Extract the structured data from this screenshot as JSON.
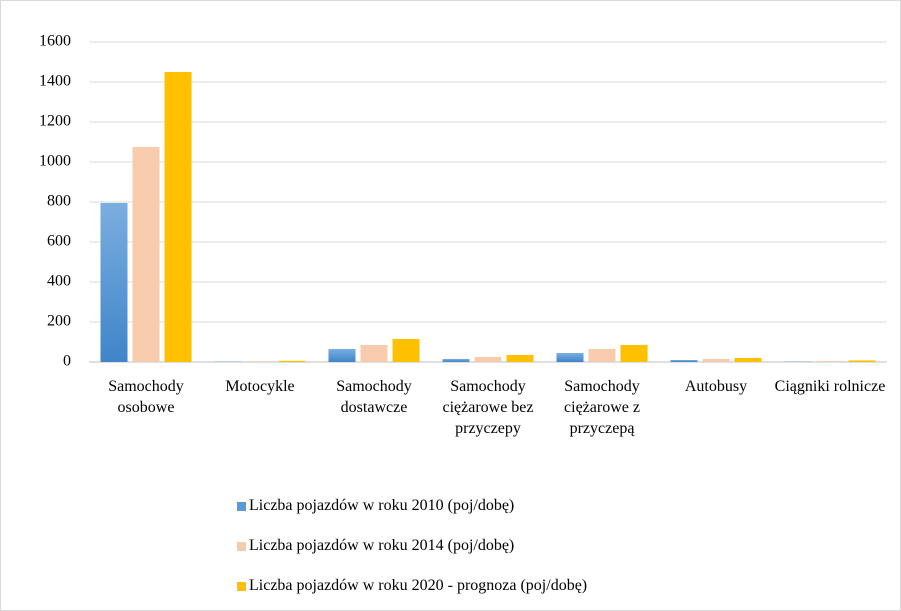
{
  "chart_data": {
    "type": "bar",
    "categories": [
      "Samochody osobowe",
      "Motocykle",
      "Samochody dostawcze",
      "Samochody ciężarowe bez przyczepy",
      "Samochody ciężarowe z przyczepą",
      "Autobusy",
      "Ciągniki rolnicze"
    ],
    "series": [
      {
        "name": "Liczba pojazdów w roku 2010 (poj/dobę)",
        "color": "#5b9bd5",
        "values": [
          795,
          2,
          65,
          15,
          45,
          10,
          2
        ]
      },
      {
        "name": "Liczba pojazdów w roku 2014 (poj/dobę)",
        "color": "#f8cbad",
        "values": [
          1075,
          4,
          85,
          25,
          65,
          15,
          5
        ]
      },
      {
        "name": "Liczba pojazdów w roku 2020 - prognoza (poj/dobę)",
        "color": "#ffc000",
        "values": [
          1450,
          6,
          115,
          35,
          85,
          20,
          8
        ]
      }
    ],
    "ylim": [
      0,
      1600
    ],
    "yticks": [
      0,
      200,
      400,
      600,
      800,
      1000,
      1200,
      1400,
      1600
    ],
    "grid": true,
    "legend": "bottom"
  }
}
